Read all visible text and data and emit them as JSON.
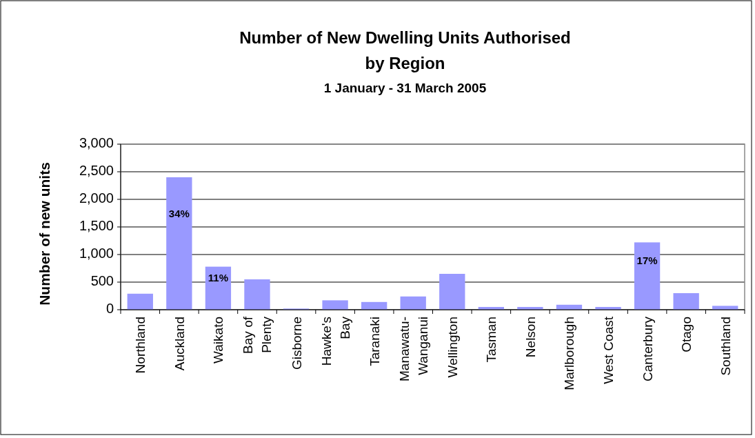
{
  "chart_data": {
    "type": "bar",
    "title": "Number of New Dwelling Units Authorised\nby Region",
    "subtitle": "1 January - 31 March 2005",
    "ylabel": "Number of new units",
    "categories": [
      "Northland",
      "Auckland",
      "Waikato",
      "Bay of Plenty",
      "Gisborne",
      "Hawke's Bay",
      "Taranaki",
      "Manawatu-Wanganui",
      "Wellington",
      "Tasman",
      "Nelson",
      "Marlborough",
      "West Coast",
      "Canterbury",
      "Otago",
      "Southland"
    ],
    "values": [
      290,
      2400,
      780,
      550,
      20,
      170,
      140,
      240,
      650,
      50,
      50,
      90,
      50,
      1220,
      300,
      70
    ],
    "annotations": [
      "34%",
      "11%",
      "17%"
    ],
    "color": "#9999ff",
    "ylim": [
      0,
      3000
    ],
    "yticks": [
      {
        "value": 0,
        "label": "0"
      },
      {
        "value": 500,
        "label": "500"
      },
      {
        "value": 1000,
        "label": "1,000"
      },
      {
        "value": 1500,
        "label": "1,500"
      },
      {
        "value": 2000,
        "label": "2,000"
      },
      {
        "value": 2500,
        "label": "2,500"
      },
      {
        "value": 3000,
        "label": "3,000"
      }
    ],
    "grid": "y"
  }
}
